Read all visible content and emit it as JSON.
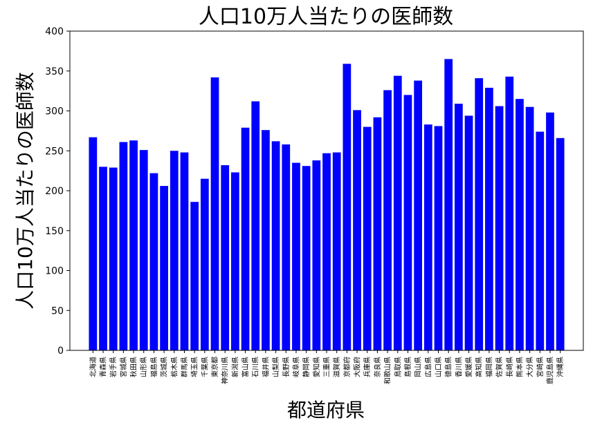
{
  "chart_data": {
    "type": "bar",
    "title": "人口10万人当たりの医師数",
    "xlabel": "都道府県",
    "ylabel": "人口10万人当たりの医師数",
    "ylim": [
      0,
      400
    ],
    "yticks": [
      0,
      50,
      100,
      150,
      200,
      250,
      300,
      350,
      400
    ],
    "grid": false,
    "bar_color": "#0000ff",
    "categories": [
      "北海道",
      "青森県",
      "岩手県",
      "宮城県",
      "秋田県",
      "山形県",
      "福島県",
      "茨城県",
      "栃木県",
      "群馬県",
      "埼玉県",
      "千葉県",
      "東京都",
      "神奈川県",
      "新潟県",
      "富山県",
      "石川県",
      "福井県",
      "山梨県",
      "長野県",
      "岐阜県",
      "静岡県",
      "愛知県",
      "三重県",
      "滋賀県",
      "京都府",
      "大阪府",
      "兵庫県",
      "奈良県",
      "和歌山県",
      "鳥取県",
      "島根県",
      "岡山県",
      "広島県",
      "山口県",
      "徳島県",
      "香川県",
      "愛媛県",
      "高知県",
      "福岡県",
      "佐賀県",
      "長崎県",
      "熊本県",
      "大分県",
      "宮崎県",
      "鹿児島県",
      "沖縄県"
    ],
    "values": [
      267,
      230,
      229,
      261,
      263,
      251,
      222,
      206,
      250,
      248,
      186,
      215,
      342,
      232,
      223,
      279,
      312,
      276,
      262,
      258,
      235,
      231,
      238,
      247,
      248,
      359,
      301,
      280,
      292,
      326,
      344,
      320,
      338,
      283,
      281,
      365,
      309,
      294,
      341,
      329,
      306,
      343,
      315,
      305,
      274,
      298,
      266
    ]
  }
}
